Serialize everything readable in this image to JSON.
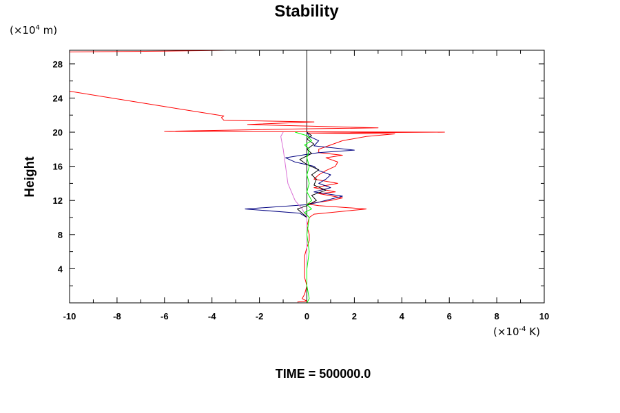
{
  "chart_data": {
    "type": "line",
    "title": "Stability",
    "ylabel": "Height",
    "xlabel": "",
    "y_unit": {
      "prefix": "(×10",
      "exp": "4",
      "suffix": " m)"
    },
    "x_unit": {
      "prefix": "(×10",
      "exp": "-4",
      "suffix": " K)"
    },
    "footer": "TIME = 500000.0",
    "xlim": [
      -10,
      10
    ],
    "ylim": [
      0,
      29.6
    ],
    "x_ticks": [
      -10,
      -8,
      -6,
      -4,
      -2,
      0,
      2,
      4,
      6,
      8,
      10
    ],
    "y_ticks": [
      4,
      8,
      12,
      16,
      20,
      24,
      28
    ],
    "grid": false,
    "legend": "none",
    "zero_line_color": "#000000",
    "series": [
      {
        "color": "#ff0000",
        "points": [
          [
            -0.4,
            0.1
          ],
          [
            0.0,
            0.2
          ],
          [
            -0.2,
            0.5
          ],
          [
            -0.1,
            1.0
          ],
          [
            0.0,
            2.0
          ],
          [
            -0.1,
            3.0
          ],
          [
            -0.1,
            4.0
          ],
          [
            -0.1,
            5.5
          ],
          [
            0.0,
            6.5
          ],
          [
            0.1,
            7.3
          ],
          [
            0.1,
            8.0
          ],
          [
            0.0,
            9.0
          ],
          [
            0.1,
            10.0
          ],
          [
            0.3,
            10.4
          ],
          [
            2.5,
            11.0
          ],
          [
            0.5,
            11.4
          ],
          [
            0.0,
            11.6
          ],
          [
            1.0,
            12.0
          ],
          [
            1.5,
            12.3
          ],
          [
            0.5,
            12.8
          ],
          [
            1.2,
            13.0
          ],
          [
            0.3,
            13.5
          ],
          [
            1.3,
            14.0
          ],
          [
            0.3,
            14.5
          ],
          [
            0.5,
            15.0
          ],
          [
            0.8,
            15.5
          ],
          [
            1.2,
            16.0
          ],
          [
            1.3,
            16.5
          ],
          [
            0.8,
            17.0
          ],
          [
            1.5,
            17.3
          ],
          [
            0.5,
            17.6
          ],
          [
            0.5,
            18.0
          ],
          [
            0.9,
            18.4
          ],
          [
            1.5,
            19.0
          ],
          [
            2.5,
            19.5
          ],
          [
            3.7,
            19.8
          ],
          [
            0.0,
            19.9
          ],
          [
            5.8,
            20.0
          ],
          [
            -6.0,
            20.1
          ],
          [
            0.0,
            20.4
          ],
          [
            3.0,
            20.5
          ],
          [
            -2.5,
            20.9
          ],
          [
            0.3,
            21.2
          ],
          [
            -3.5,
            21.4
          ],
          [
            -3.6,
            21.7
          ],
          [
            -3.5,
            21.9
          ],
          [
            -6.0,
            23.0
          ],
          [
            -10.0,
            24.8
          ]
        ]
      },
      {
        "color": "#ff0000",
        "points": [
          [
            -10.0,
            29.4
          ],
          [
            -6.0,
            29.5
          ],
          [
            -3.4,
            29.6
          ],
          [
            -8.0,
            29.6
          ]
        ]
      },
      {
        "color": "#000080",
        "points": [
          [
            0.0,
            0.2
          ],
          [
            0.0,
            10.0
          ],
          [
            -0.3,
            10.5
          ],
          [
            -2.6,
            11.0
          ],
          [
            0.0,
            11.5
          ],
          [
            0.5,
            11.8
          ],
          [
            1.5,
            12.5
          ],
          [
            0.3,
            13.0
          ],
          [
            1.0,
            13.5
          ],
          [
            0.5,
            14.0
          ],
          [
            0.8,
            14.5
          ],
          [
            1.0,
            15.0
          ],
          [
            0.5,
            15.5
          ],
          [
            0.3,
            16.0
          ],
          [
            -0.5,
            16.5
          ],
          [
            -0.9,
            17.0
          ],
          [
            0.0,
            17.4
          ],
          [
            0.5,
            17.6
          ],
          [
            2.0,
            17.9
          ],
          [
            0.3,
            18.4
          ],
          [
            0.5,
            19.0
          ],
          [
            0.1,
            19.5
          ],
          [
            0.0,
            20.0
          ]
        ]
      },
      {
        "color": "#000000",
        "points": [
          [
            0.0,
            0.2
          ],
          [
            0.0,
            10.0
          ],
          [
            -0.2,
            10.5
          ],
          [
            -0.4,
            11.0
          ],
          [
            0.0,
            11.4
          ],
          [
            0.4,
            12.0
          ],
          [
            0.2,
            12.6
          ],
          [
            0.8,
            13.2
          ],
          [
            0.3,
            13.8
          ],
          [
            0.4,
            14.5
          ],
          [
            0.2,
            15.0
          ],
          [
            0.5,
            15.6
          ],
          [
            0.0,
            16.2
          ],
          [
            -0.3,
            16.8
          ],
          [
            0.2,
            17.5
          ],
          [
            0.0,
            18.0
          ],
          [
            0.3,
            18.6
          ],
          [
            0.0,
            19.2
          ],
          [
            0.2,
            19.6
          ],
          [
            0.0,
            20.0
          ]
        ]
      },
      {
        "color": "#da70d6",
        "points": [
          [
            0.0,
            2.0
          ],
          [
            0.0,
            10.0
          ],
          [
            -0.2,
            11.0
          ],
          [
            -0.5,
            12.0
          ],
          [
            -0.8,
            14.0
          ],
          [
            -0.9,
            16.0
          ],
          [
            -1.0,
            18.0
          ],
          [
            -1.1,
            19.5
          ],
          [
            -1.0,
            20.0
          ]
        ]
      },
      {
        "color": "#00ff00",
        "points": [
          [
            0.0,
            0.0
          ],
          [
            0.1,
            0.5
          ],
          [
            0.0,
            2.0
          ],
          [
            0.0,
            4.0
          ],
          [
            0.1,
            6.0
          ],
          [
            0.0,
            8.0
          ],
          [
            0.1,
            10.0
          ],
          [
            -0.1,
            10.6
          ],
          [
            0.2,
            11.0
          ],
          [
            0.0,
            11.5
          ],
          [
            0.2,
            12.0
          ],
          [
            0.0,
            13.0
          ],
          [
            0.1,
            14.0
          ],
          [
            0.0,
            15.0
          ],
          [
            0.1,
            16.0
          ],
          [
            0.0,
            17.0
          ],
          [
            0.1,
            18.0
          ],
          [
            -0.1,
            18.5
          ],
          [
            0.2,
            19.0
          ],
          [
            0.0,
            19.6
          ],
          [
            -0.5,
            20.0
          ]
        ]
      }
    ]
  }
}
